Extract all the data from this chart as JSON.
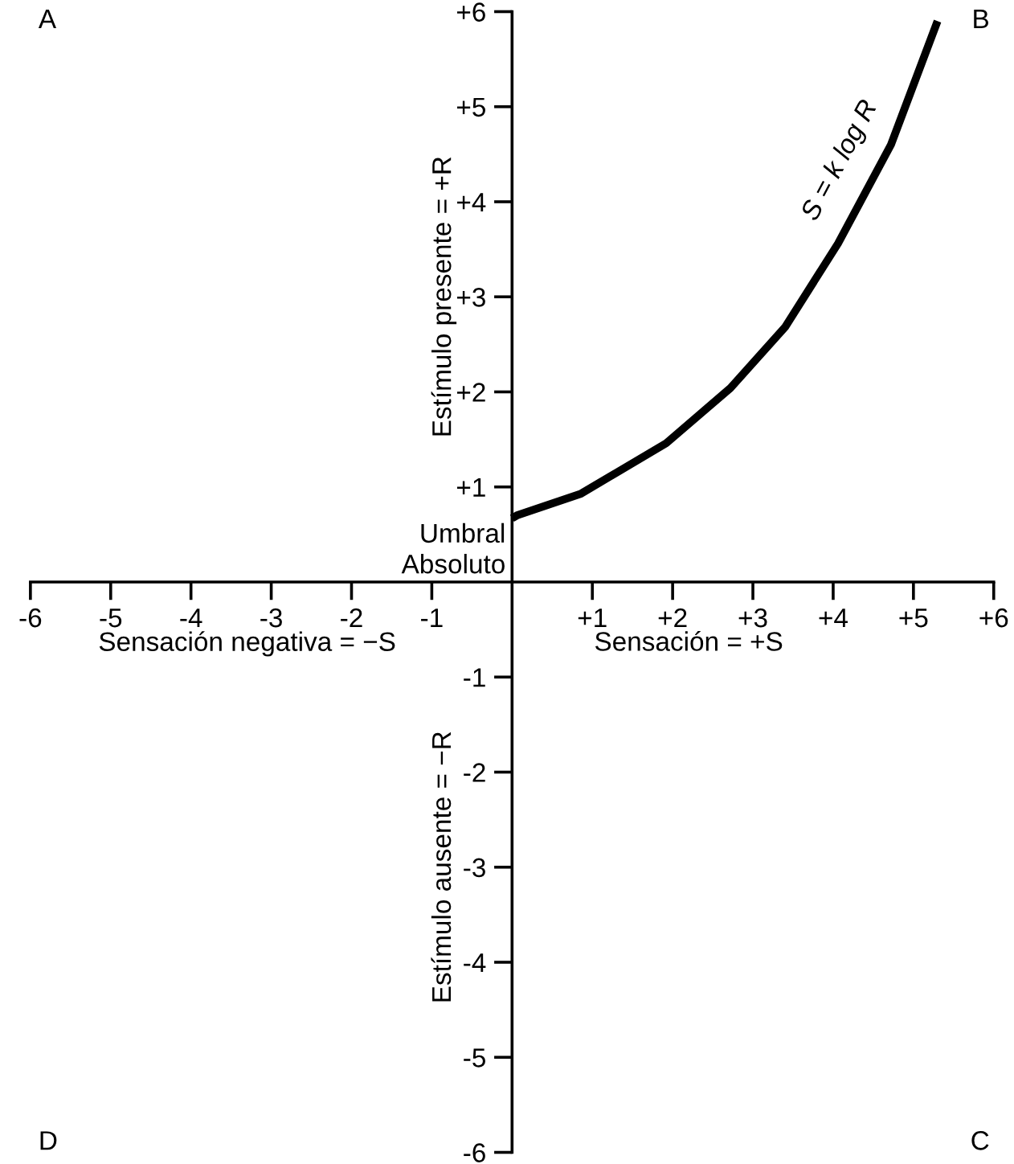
{
  "chart_data": {
    "type": "line",
    "x": [
      0,
      0.06,
      0.86,
      1.92,
      2.72,
      3.4,
      4.06,
      4.72,
      5.3
    ],
    "series": [
      {
        "name": "S = k log R",
        "color": "#000000",
        "values": [
          0.67,
          0.7,
          0.93,
          1.46,
          2.04,
          2.68,
          3.56,
          4.6,
          5.9
        ]
      }
    ],
    "xlim": [
      -6,
      6
    ],
    "ylim": [
      -6,
      6
    ],
    "xticks": [
      {
        "value": -6,
        "label": "-6"
      },
      {
        "value": -5,
        "label": "-5"
      },
      {
        "value": -4,
        "label": "-4"
      },
      {
        "value": -3,
        "label": "-3"
      },
      {
        "value": -2,
        "label": "-2"
      },
      {
        "value": -1,
        "label": "-1"
      },
      {
        "value": 1,
        "label": "+1"
      },
      {
        "value": 2,
        "label": "+2"
      },
      {
        "value": 3,
        "label": "+3"
      },
      {
        "value": 4,
        "label": "+4"
      },
      {
        "value": 5,
        "label": "+5"
      },
      {
        "value": 6,
        "label": "+6"
      }
    ],
    "yticks": [
      {
        "value": -6,
        "label": "-6"
      },
      {
        "value": -5,
        "label": "-5"
      },
      {
        "value": -4,
        "label": "-4"
      },
      {
        "value": -3,
        "label": "-3"
      },
      {
        "value": -2,
        "label": "-2"
      },
      {
        "value": -1,
        "label": "-1"
      },
      {
        "value": 1,
        "label": "+1"
      },
      {
        "value": 2,
        "label": "+2"
      },
      {
        "value": 3,
        "label": "+3"
      },
      {
        "value": 4,
        "label": "+4"
      },
      {
        "value": 5,
        "label": "+5"
      },
      {
        "value": 6,
        "label": "+6"
      }
    ],
    "annotations": [
      "A",
      "B",
      "D",
      "C",
      "Estímulo presente = +R",
      "Sensación negativa = −S",
      "Sensación = +S",
      "Estímulo ausente = −R",
      {
        "text": "Umbral\nAbsoluto",
        "x": 0,
        "y": 0.67
      }
    ],
    "grid": false,
    "legend": false,
    "marker": "none",
    "line_style": "solid"
  }
}
